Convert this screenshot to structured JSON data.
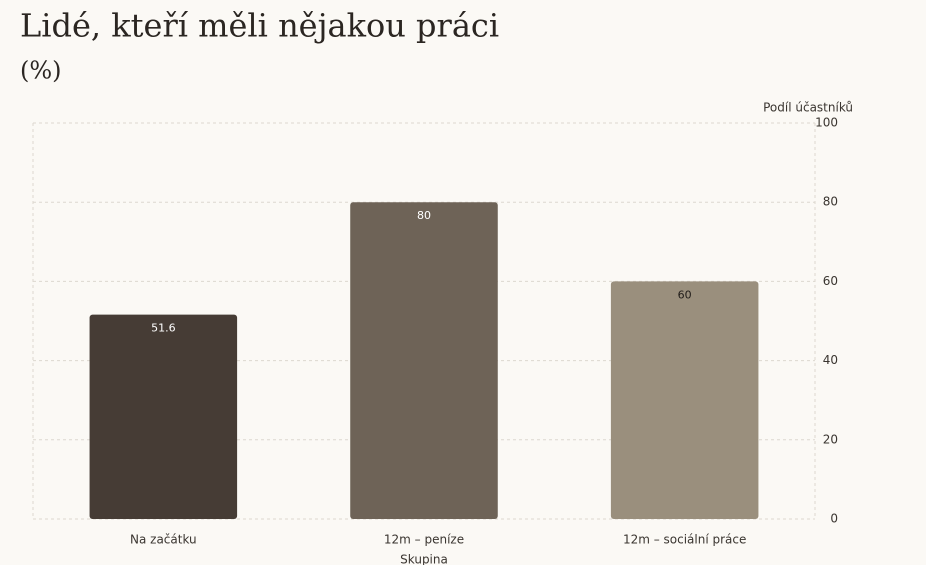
{
  "chart_data": {
    "type": "bar",
    "title": "Lidé, kteří měli nějakou práci",
    "subtitle": "(%)",
    "y_label": "Podíl účastníků",
    "x_label": "Skupina",
    "categories": [
      "Na začátku",
      "12m – peníze",
      "12m – sociální práce"
    ],
    "values": [
      51.6,
      80,
      60
    ],
    "colors": [
      "#463c35",
      "#6e6357",
      "#9a8f7d"
    ],
    "ylim": [
      0,
      100
    ],
    "yticks": [
      0,
      20,
      40,
      60,
      80,
      100
    ],
    "grid": true
  }
}
